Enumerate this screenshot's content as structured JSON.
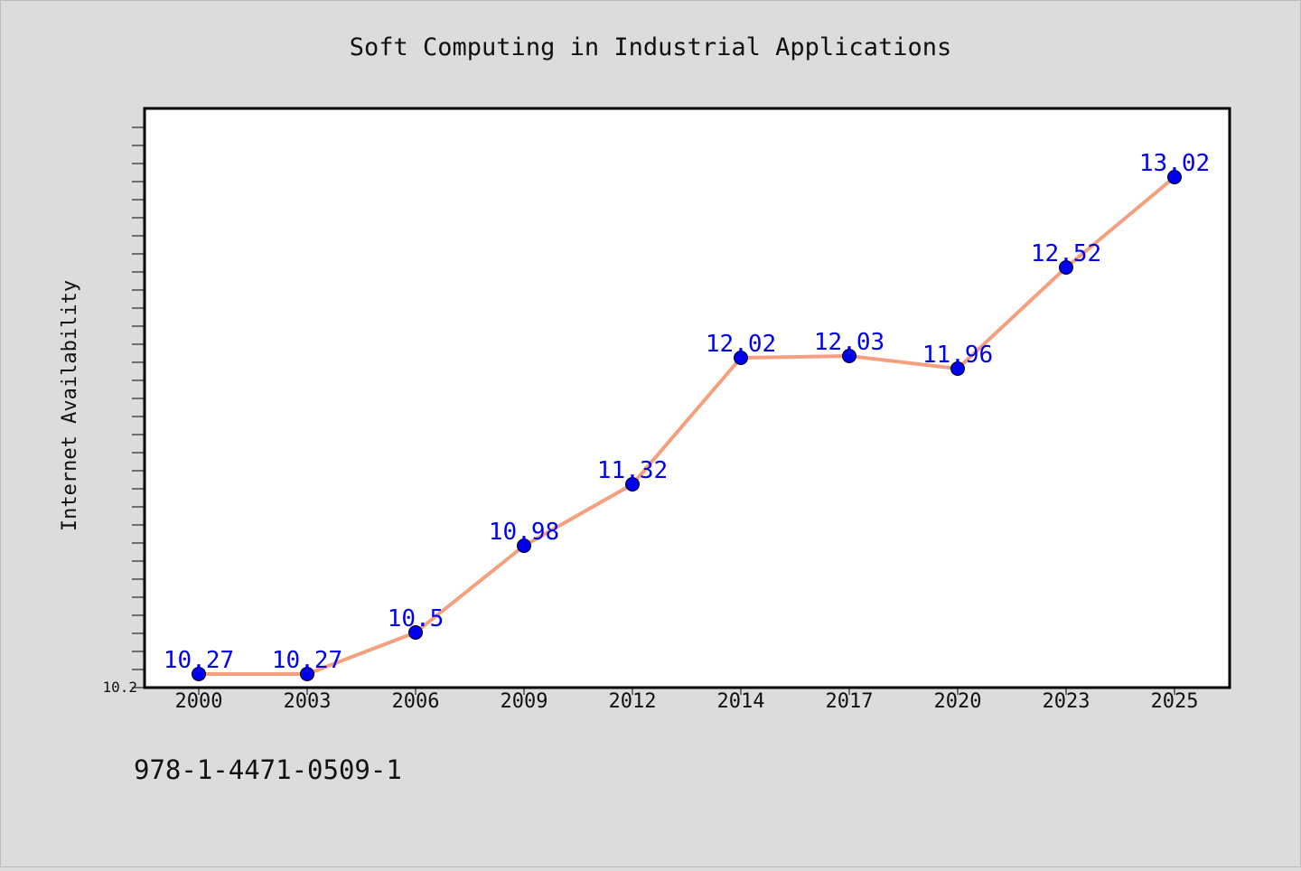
{
  "chart_data": {
    "type": "line",
    "title": "Soft Computing in Industrial Applications",
    "xlabel": "",
    "ylabel": "Internet Availability",
    "categories": [
      "2000",
      "2003",
      "2006",
      "2009",
      "2012",
      "2014",
      "2017",
      "2020",
      "2023",
      "2025"
    ],
    "series": [
      {
        "values": [
          10.27,
          10.27,
          10.5,
          10.98,
          11.32,
          12.02,
          12.03,
          11.96,
          12.52,
          13.02
        ],
        "labels": [
          "10.27",
          "10.27",
          "10.5",
          "10.98",
          "11.32",
          "12.02",
          "12.03",
          "11.96",
          "12.52",
          "13.02"
        ]
      }
    ],
    "ylim": [
      10.2,
      13.4
    ],
    "y_tick_labels": [
      "10.2"
    ],
    "grid": false,
    "colors": {
      "line": "#f4a07f",
      "marker": "#0000ee",
      "data_label": "#0000ee",
      "plot_background": "#ffffff",
      "page_background": "#dcdcdc"
    }
  },
  "footer": {
    "isbn": "978-1-4471-0509-1"
  }
}
